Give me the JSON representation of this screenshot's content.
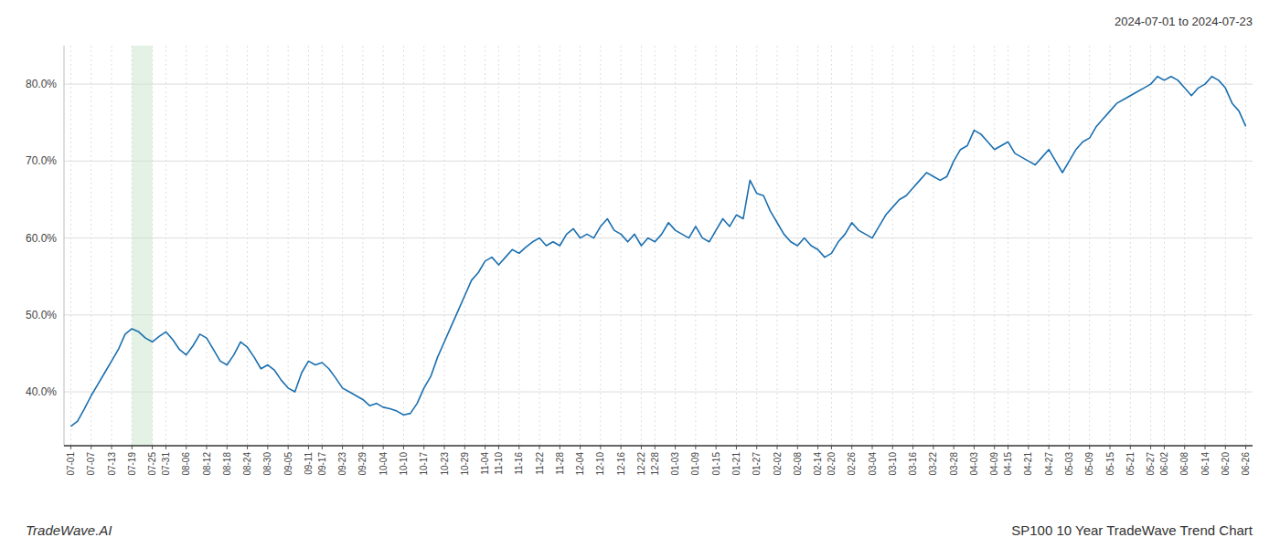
{
  "chart_data": {
    "type": "line",
    "title": "SP100 10 Year TradeWave Trend Chart",
    "subtitle": "2024-07-01 to 2024-07-23",
    "annotations": [
      "TradeWave.AI"
    ],
    "color": "#1a6faf",
    "grid": true,
    "ylim": [
      33,
      85
    ],
    "yticks": [
      {
        "value": 40,
        "label": "40.0%"
      },
      {
        "value": 50,
        "label": "50.0%"
      },
      {
        "value": 60,
        "label": "60.0%"
      },
      {
        "value": 70,
        "label": "70.0%"
      },
      {
        "value": 80,
        "label": "80.0%"
      }
    ],
    "shade": {
      "start": "07-19",
      "end": "07-25",
      "color": "#c8e6c9"
    },
    "categories": [
      "07-01",
      null,
      null,
      "07-07",
      null,
      null,
      "07-13",
      null,
      null,
      "07-19",
      null,
      null,
      "07-25",
      null,
      "07-31",
      null,
      null,
      "08-06",
      null,
      null,
      "08-12",
      null,
      null,
      "08-18",
      null,
      null,
      "08-24",
      null,
      null,
      "08-30",
      null,
      null,
      "09-05",
      null,
      null,
      "09-11",
      null,
      "09-17",
      null,
      null,
      "09-23",
      null,
      null,
      "09-29",
      null,
      null,
      "10-04",
      null,
      null,
      "10-10",
      null,
      null,
      "10-17",
      null,
      null,
      "10-23",
      null,
      null,
      "10-29",
      null,
      null,
      "11-04",
      null,
      "11-10",
      null,
      null,
      "11-16",
      null,
      null,
      "11-22",
      null,
      null,
      "11-28",
      null,
      null,
      "12-04",
      null,
      null,
      "12-10",
      null,
      null,
      "12-16",
      null,
      null,
      "12-22",
      null,
      "12-28",
      null,
      null,
      "01-03",
      null,
      null,
      "01-09",
      null,
      null,
      "01-15",
      null,
      null,
      "01-21",
      null,
      null,
      "01-27",
      null,
      null,
      "02-02",
      null,
      null,
      "02-08",
      null,
      null,
      "02-14",
      null,
      "02-20",
      null,
      null,
      "02-26",
      null,
      null,
      "03-04",
      null,
      null,
      "03-10",
      null,
      null,
      "03-16",
      null,
      null,
      "03-22",
      null,
      null,
      "03-28",
      null,
      null,
      "04-03",
      null,
      null,
      "04-09",
      null,
      "04-15",
      null,
      null,
      "04-21",
      null,
      null,
      "04-27",
      null,
      null,
      "05-03",
      null,
      null,
      "05-09",
      null,
      null,
      "05-15",
      null,
      null,
      "05-21",
      null,
      null,
      "05-27",
      null,
      "06-02",
      null,
      null,
      "06-08",
      null,
      null,
      "06-14",
      null,
      null,
      "06-20",
      null,
      null,
      "06-26"
    ],
    "values": [
      35.5,
      36.2,
      37.8,
      39.5,
      41.0,
      42.5,
      44.0,
      45.5,
      47.5,
      48.2,
      47.8,
      47.0,
      46.5,
      47.2,
      47.8,
      46.8,
      45.5,
      44.8,
      46.0,
      47.5,
      47.0,
      45.5,
      44.0,
      43.5,
      44.8,
      46.5,
      45.8,
      44.5,
      43.0,
      43.5,
      42.8,
      41.5,
      40.5,
      40.0,
      42.5,
      44.0,
      43.5,
      43.8,
      43.0,
      41.8,
      40.5,
      40.0,
      39.5,
      39.0,
      38.2,
      38.5,
      38.0,
      37.8,
      37.5,
      37.0,
      37.2,
      38.5,
      40.5,
      42.0,
      44.5,
      46.5,
      48.5,
      50.5,
      52.5,
      54.5,
      55.5,
      57.0,
      57.5,
      56.5,
      57.5,
      58.5,
      58.0,
      58.8,
      59.5,
      60.0,
      59.0,
      59.5,
      59.0,
      60.5,
      61.2,
      60.0,
      60.5,
      60.0,
      61.5,
      62.5,
      61.0,
      60.5,
      59.5,
      60.5,
      59.0,
      60.0,
      59.5,
      60.5,
      62.0,
      61.0,
      60.5,
      60.0,
      61.5,
      60.0,
      59.5,
      61.0,
      62.5,
      61.5,
      63.0,
      62.5,
      67.5,
      65.8,
      65.5,
      63.5,
      62.0,
      60.5,
      59.5,
      59.0,
      60.0,
      59.0,
      58.5,
      57.5,
      58.0,
      59.5,
      60.5,
      62.0,
      61.0,
      60.5,
      60.0,
      61.5,
      63.0,
      64.0,
      65.0,
      65.5,
      66.5,
      67.5,
      68.5,
      68.0,
      67.5,
      68.0,
      70.0,
      71.5,
      72.0,
      74.0,
      73.5,
      72.5,
      71.5,
      72.0,
      72.5,
      71.0,
      70.5,
      70.0,
      69.5,
      70.5,
      71.5,
      70.0,
      68.5,
      70.0,
      71.5,
      72.5,
      73.0,
      74.5,
      75.5,
      76.5,
      77.5,
      78.0,
      78.5,
      79.0,
      79.5,
      80.0,
      81.0,
      80.5,
      81.0,
      80.5,
      79.5,
      78.5,
      79.5,
      80.0,
      81.0,
      80.5,
      79.5,
      77.5,
      76.5,
      74.5
    ]
  }
}
